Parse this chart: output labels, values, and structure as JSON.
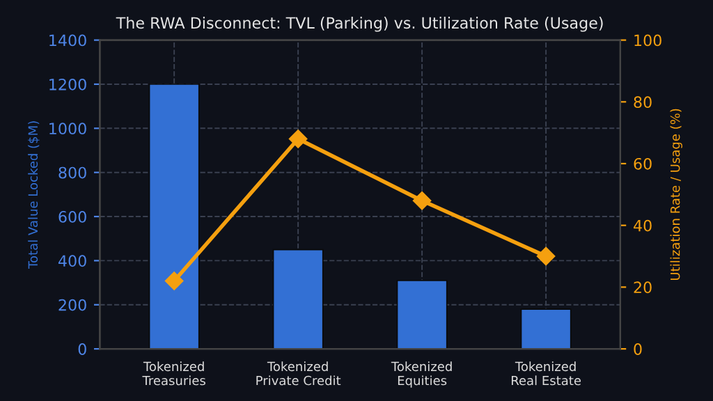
{
  "chart_data": {
    "type": "bar",
    "title": "The RWA Disconnect: TVL (Parking) vs. Utilization Rate (Usage)",
    "ylabel": "Total Value Locked ($M)",
    "y2label": "Utilization Rate / Usage (%)",
    "categories": [
      "Tokenized\nTreasuries",
      "Tokenized\nPrivate Credit",
      "Tokenized\nEquities",
      "Tokenized\nReal Estate"
    ],
    "series": [
      {
        "color": "#3370d4",
        "values": [
          1200,
          450,
          310,
          180
        ]
      },
      {
        "type": "line",
        "axis": "y2",
        "color": "#f5a00f",
        "marker": "diamond",
        "values": [
          22,
          68,
          48,
          30
        ]
      }
    ],
    "ylim": [
      0,
      1400
    ],
    "yticks": [
      0,
      200,
      400,
      600,
      800,
      1000,
      1200,
      1400
    ],
    "y2lim": [
      0,
      100
    ],
    "y2ticks": [
      0,
      20,
      40,
      60,
      80,
      100
    ],
    "grid": true,
    "legend": false
  }
}
